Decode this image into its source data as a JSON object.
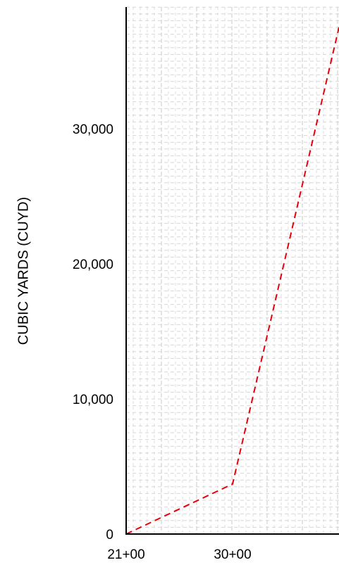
{
  "chart_data": {
    "type": "line",
    "title": "",
    "xlabel": "",
    "ylabel": "CUBIC YARDS (CUYD)",
    "x_tick_labels": [
      {
        "label": "21+00",
        "station": 2100
      },
      {
        "label": "30+00",
        "station": 3000
      }
    ],
    "y_tick_labels": [
      {
        "label": "0",
        "value": 0
      },
      {
        "label": "10,000",
        "value": 10000
      },
      {
        "label": "20,000",
        "value": 20000
      },
      {
        "label": "30,000",
        "value": 30000
      }
    ],
    "xlim": [
      2100,
      3900
    ],
    "ylim": [
      0,
      39000
    ],
    "grid": true,
    "series": [
      {
        "color": "#e8000b",
        "line_style": "dashed",
        "x": [
          2100,
          3000,
          3900
        ],
        "y": [
          0,
          3700,
          37500
        ]
      }
    ]
  }
}
